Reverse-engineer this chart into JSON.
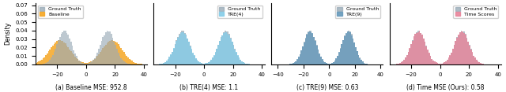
{
  "subplots": [
    {
      "label": "(a) Baseline MSE: 952.8",
      "ground_truth_color": "#9aabb8",
      "other_color": "#f5a623",
      "other_name": "Baseline",
      "xlim": [
        -35,
        42
      ],
      "ylim": [
        0,
        0.073
      ],
      "show_yticks": true,
      "ylabel": "Density",
      "legend_loc": "upper left",
      "gt_first": false
    },
    {
      "label": "(b) TRE(4) MSE: 1.1",
      "ground_truth_color": "#9aabb8",
      "other_color": "#85cce8",
      "other_name": "TRE(4)",
      "xlim": [
        -35,
        42
      ],
      "ylim": [
        0,
        0.073
      ],
      "show_yticks": false,
      "ylabel": "",
      "legend_loc": "upper right",
      "gt_first": true
    },
    {
      "label": "(c) TRE(9) MSE: 0.63",
      "ground_truth_color": "#9aabb8",
      "other_color": "#6699bb",
      "other_name": "TRE(9)",
      "xlim": [
        -45,
        42
      ],
      "ylim": [
        0,
        0.073
      ],
      "show_yticks": false,
      "ylabel": "",
      "legend_loc": "upper right",
      "gt_first": true
    },
    {
      "label": "(d) Time MSE (Ours): 0.58",
      "ground_truth_color": "#9aabb8",
      "other_color": "#e8849a",
      "other_name": "Time Scores",
      "xlim": [
        -35,
        42
      ],
      "ylim": [
        0,
        0.073
      ],
      "show_yticks": false,
      "ylabel": "",
      "legend_loc": "upper right",
      "gt_first": true
    }
  ],
  "n_samples": 200000,
  "bins": 80,
  "background_color": "#ffffff",
  "figure_width": 6.4,
  "figure_height": 1.17,
  "gt_means": [
    -15,
    15
  ],
  "gt_std": 5,
  "baseline_means": [
    -18,
    18
  ],
  "baseline_std": 7,
  "tre4_means": [
    -15,
    15
  ],
  "tre4_std": 5,
  "tre9_means": [
    -15,
    15
  ],
  "tre9_std": 5,
  "time_means": [
    -15,
    15
  ],
  "time_std": 5
}
